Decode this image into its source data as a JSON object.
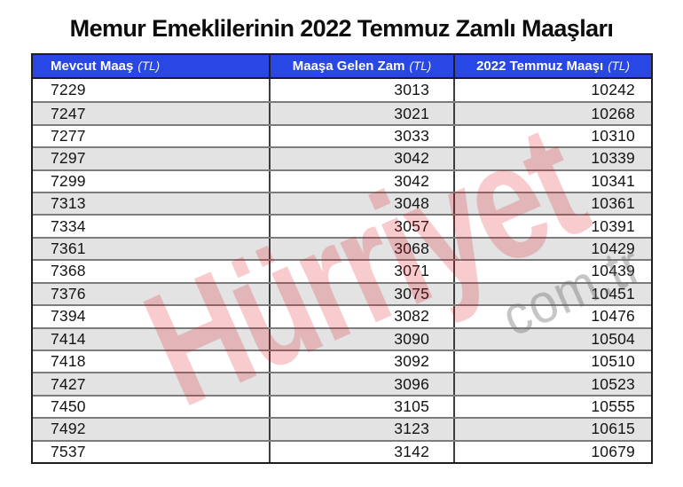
{
  "title": "Memur Emeklilerinin 2022 Temmuz Zamlı Maaşları",
  "table": {
    "columns": [
      {
        "label": "Mevcut Maaş",
        "unit": "(TL)"
      },
      {
        "label": "Maaşa Gelen Zam",
        "unit": "(TL)"
      },
      {
        "label": "2022 Temmuz Maaşı",
        "unit": "(TL)"
      }
    ],
    "rows": [
      [
        "7229",
        "3013",
        "10242"
      ],
      [
        "7247",
        "3021",
        "10268"
      ],
      [
        "7277",
        "3033",
        "10310"
      ],
      [
        "7297",
        "3042",
        "10339"
      ],
      [
        "7299",
        "3042",
        "10341"
      ],
      [
        "7313",
        "3048",
        "10361"
      ],
      [
        "7334",
        "3057",
        "10391"
      ],
      [
        "7361",
        "3068",
        "10429"
      ],
      [
        "7368",
        "3071",
        "10439"
      ],
      [
        "7376",
        "3075",
        "10451"
      ],
      [
        "7394",
        "3082",
        "10476"
      ],
      [
        "7414",
        "3090",
        "10504"
      ],
      [
        "7418",
        "3092",
        "10510"
      ],
      [
        "7427",
        "3096",
        "10523"
      ],
      [
        "7450",
        "3105",
        "10555"
      ],
      [
        "7492",
        "3123",
        "10615"
      ],
      [
        "7537",
        "3142",
        "10679"
      ]
    ]
  },
  "watermark": {
    "brand": "Hürriyet",
    "domain": "com.tr"
  },
  "colors": {
    "header_bg": "#2847e4",
    "header_text": "#ffffff",
    "row_alt_bg": "#e3e3e3",
    "brand_red": "#de101c"
  }
}
